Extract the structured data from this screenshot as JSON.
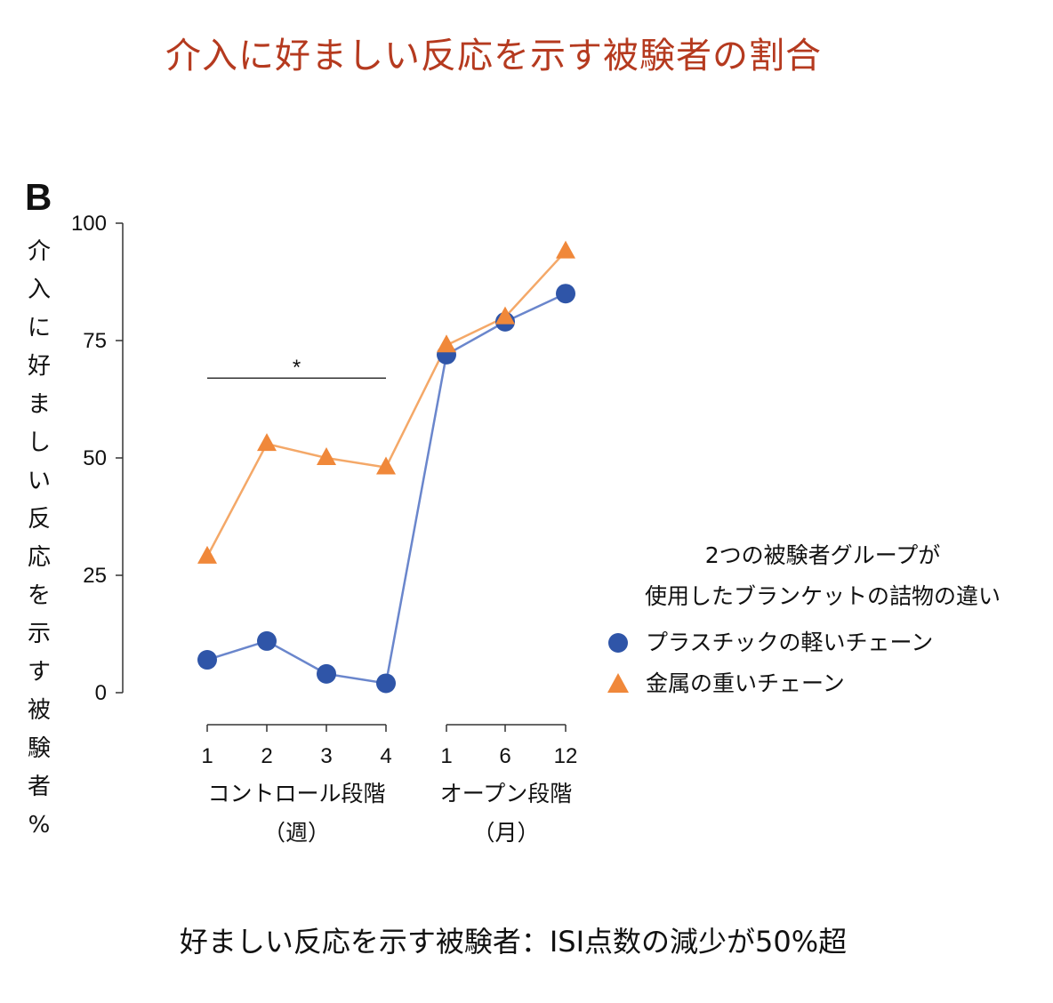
{
  "title": "介入に好ましい反応を示す被験者の割合",
  "panel_label": "B",
  "footnote": "好ましい反応を示す被験者：ISI点数の減少が50%超",
  "colors": {
    "title": "#b53a1f",
    "plastic": "#2f55a8",
    "metal": "#f0883a",
    "plastic_line": "#6a86cc",
    "metal_line": "#f4a868"
  },
  "chart_data": {
    "type": "line",
    "ylabel": "介入に好ましい反応を示す被験者%",
    "ylim": [
      0,
      100
    ],
    "yticks": [
      0,
      25,
      50,
      75,
      100
    ],
    "x": [
      "1",
      "2",
      "3",
      "4",
      "1",
      "6",
      "12"
    ],
    "x_groups": [
      {
        "label": "コントロール段階",
        "unit": "（週）",
        "ticks": [
          "1",
          "2",
          "3",
          "4"
        ]
      },
      {
        "label": "オープン段階",
        "unit": "（月）",
        "ticks": [
          "1",
          "6",
          "12"
        ]
      }
    ],
    "series": [
      {
        "name": "プラスチックの軽いチェーン",
        "marker": "circle",
        "values": [
          7,
          11,
          4,
          2,
          72,
          79,
          85
        ]
      },
      {
        "name": "金属の重いチェーン",
        "marker": "triangle",
        "values": [
          29,
          53,
          50,
          48,
          74,
          80,
          94
        ]
      }
    ],
    "significance": {
      "label": "*",
      "y": 67,
      "from_index": 0,
      "to_index": 3
    },
    "legend": {
      "title_line1": "2つの被験者グループが",
      "title_line2": "使用したブランケットの詰物の違い",
      "position": "right"
    },
    "grid": false
  }
}
